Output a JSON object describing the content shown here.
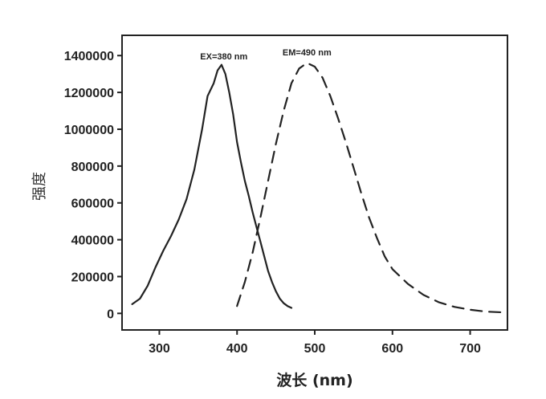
{
  "chart_data": {
    "type": "line",
    "xlabel": "波长 (nm)",
    "ylabel": "强度",
    "xlim": [
      252,
      748
    ],
    "ylim": [
      -90000,
      1510000
    ],
    "x_ticks": [
      300,
      400,
      500,
      600,
      700
    ],
    "y_ticks": [
      0,
      200000,
      400000,
      600000,
      800000,
      1000000,
      1200000,
      1400000
    ],
    "x_tick_labels": [
      "300",
      "400",
      "500",
      "600",
      "700"
    ],
    "y_tick_labels": [
      "0",
      "200000",
      "400000",
      "600000",
      "800000",
      "1000000",
      "1200000",
      "1400000"
    ],
    "grid": false,
    "annotations": [
      {
        "text": "EX=380 nm",
        "x": 383,
        "y": 1380000
      },
      {
        "text": "EM=490 nm",
        "x": 490,
        "y": 1400000
      }
    ],
    "series": [
      {
        "style": "solid",
        "color": "#222222",
        "x": [
          265,
          275,
          285,
          295,
          305,
          315,
          325,
          335,
          345,
          355,
          362,
          370,
          375,
          380,
          385,
          390,
          395,
          400,
          405,
          410,
          415,
          420,
          425,
          430,
          435,
          440,
          445,
          450,
          455,
          460,
          465,
          470
        ],
        "y": [
          50000,
          80000,
          150000,
          250000,
          340000,
          420000,
          510000,
          620000,
          780000,
          1000000,
          1180000,
          1250000,
          1320000,
          1350000,
          1300000,
          1200000,
          1080000,
          930000,
          820000,
          720000,
          640000,
          550000,
          470000,
          390000,
          310000,
          230000,
          170000,
          120000,
          80000,
          55000,
          40000,
          30000
        ]
      },
      {
        "style": "dashed",
        "color": "#222222",
        "x": [
          400,
          410,
          420,
          430,
          440,
          450,
          460,
          470,
          480,
          490,
          500,
          510,
          520,
          530,
          540,
          550,
          560,
          570,
          580,
          590,
          600,
          620,
          640,
          660,
          680,
          700,
          720,
          745
        ],
        "y": [
          40000,
          170000,
          330000,
          520000,
          720000,
          920000,
          1100000,
          1250000,
          1330000,
          1360000,
          1340000,
          1280000,
          1180000,
          1060000,
          930000,
          790000,
          650000,
          520000,
          410000,
          310000,
          240000,
          160000,
          100000,
          60000,
          35000,
          20000,
          10000,
          5000
        ]
      }
    ]
  }
}
